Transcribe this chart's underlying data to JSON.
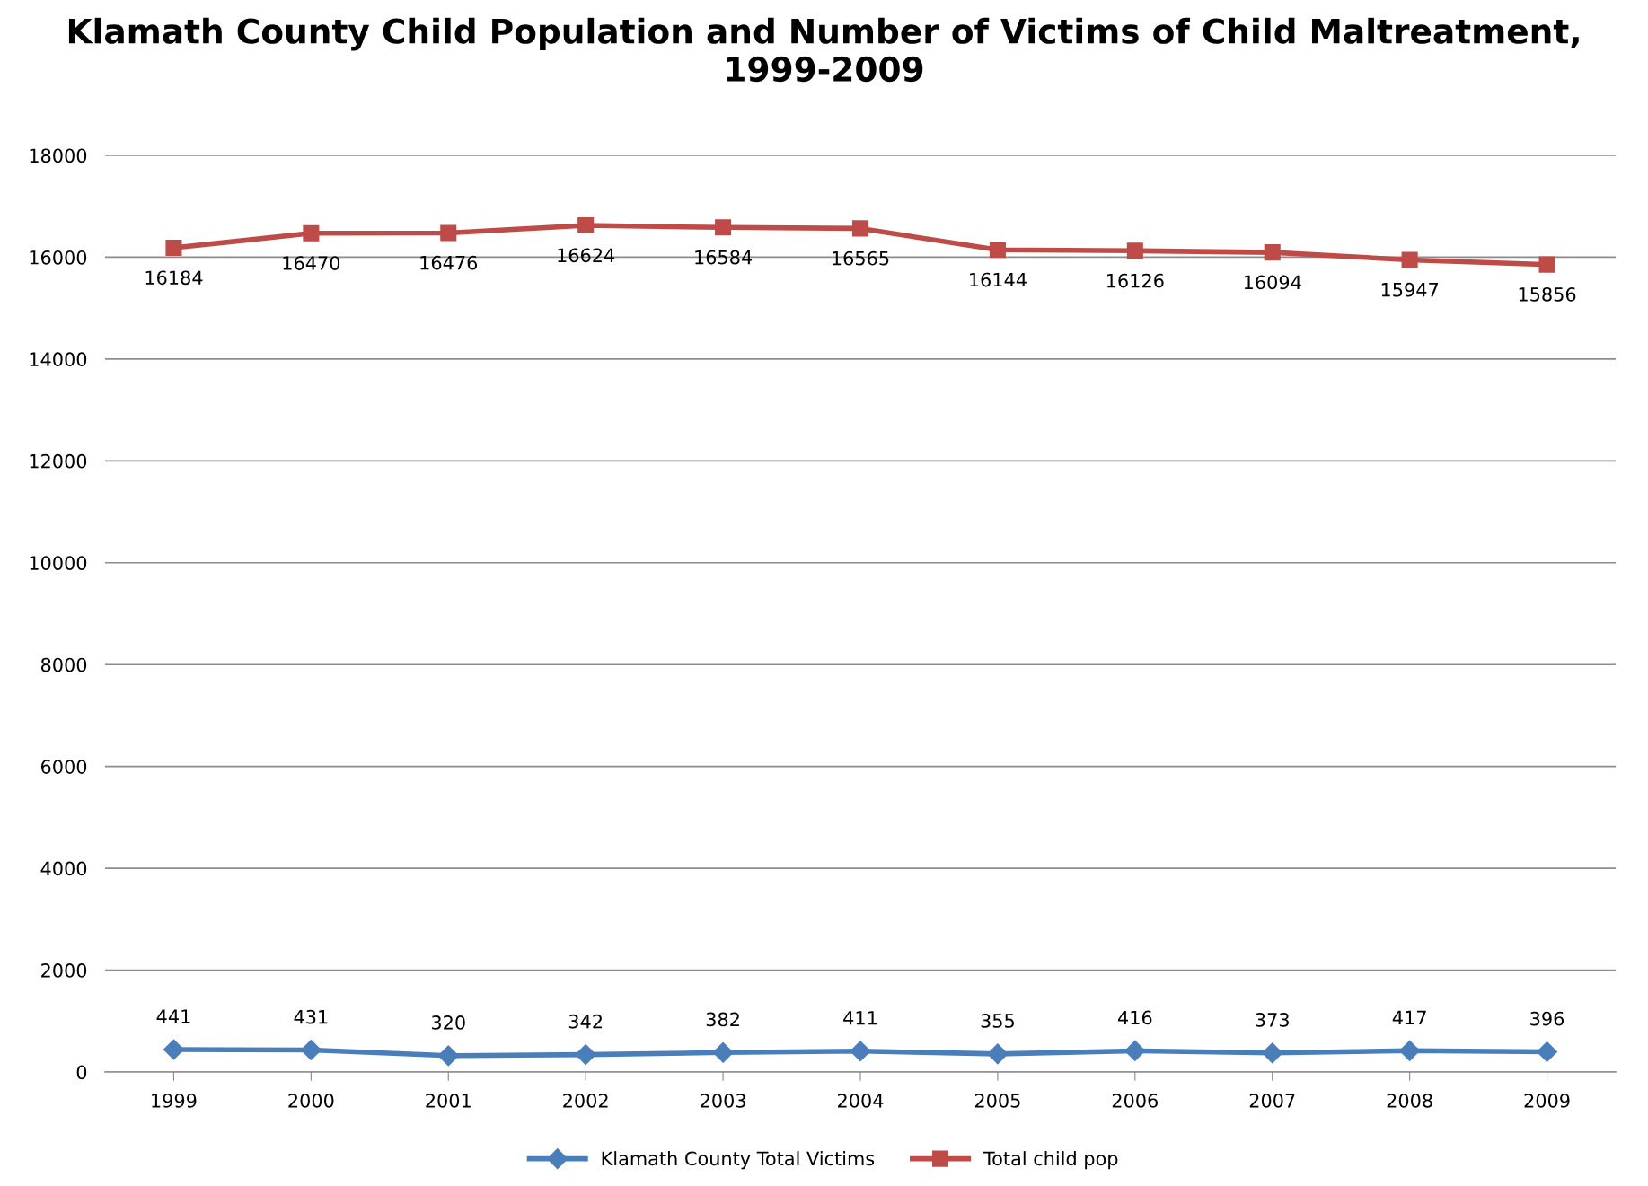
{
  "chart_data": {
    "type": "line",
    "title": "Klamath County Child Population and Number of Victims of Child Maltreatment, 1999-2009",
    "categories": [
      "1999",
      "2000",
      "2001",
      "2002",
      "2003",
      "2004",
      "2005",
      "2006",
      "2007",
      "2008",
      "2009"
    ],
    "series": [
      {
        "name": "Klamath County Total Victims",
        "color": "#4a7ebb",
        "marker": "diamond",
        "values": [
          441,
          431,
          320,
          342,
          382,
          411,
          355,
          416,
          373,
          417,
          396
        ]
      },
      {
        "name": "Total child pop",
        "color": "#be4b48",
        "marker": "square",
        "values": [
          16184,
          16470,
          16476,
          16624,
          16584,
          16565,
          16144,
          16126,
          16094,
          15947,
          15856
        ]
      }
    ],
    "ylim": [
      0,
      18000
    ],
    "yticks": [
      0,
      2000,
      4000,
      6000,
      8000,
      10000,
      12000,
      14000,
      16000,
      18000
    ],
    "grid": "y",
    "legend": "bottom",
    "data_labels": true,
    "line_style": "solid"
  }
}
